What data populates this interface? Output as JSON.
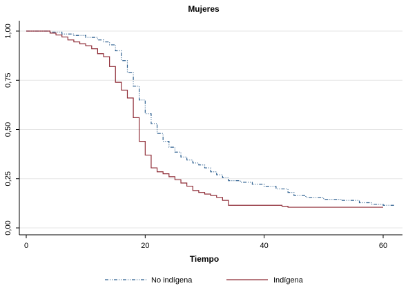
{
  "chart_data": {
    "type": "line",
    "step": true,
    "title": "Mujeres",
    "xlabel": "Tiempo",
    "ylabel": "",
    "xlim": [
      0,
      62
    ],
    "ylim": [
      0,
      1
    ],
    "x_ticks": [
      0,
      20,
      40,
      60
    ],
    "x_tick_labels": [
      "0",
      "20",
      "40",
      "60"
    ],
    "y_ticks": [
      0,
      0.25,
      0.5,
      0.75,
      1
    ],
    "y_tick_labels": [
      "0,00",
      "0,25",
      "0,50",
      "0,75",
      "1,00"
    ],
    "grid": true,
    "legend_position": "bottom",
    "series": [
      {
        "name": "No indígena",
        "color": "#2c5f8f",
        "dash": "dash-dot-dot",
        "points": [
          [
            0,
            1.0
          ],
          [
            4,
            0.995
          ],
          [
            6,
            0.985
          ],
          [
            8,
            0.978
          ],
          [
            10,
            0.968
          ],
          [
            12,
            0.955
          ],
          [
            13,
            0.945
          ],
          [
            14,
            0.93
          ],
          [
            15,
            0.9
          ],
          [
            16,
            0.85
          ],
          [
            17,
            0.79
          ],
          [
            18,
            0.72
          ],
          [
            19,
            0.65
          ],
          [
            20,
            0.58
          ],
          [
            21,
            0.53
          ],
          [
            22,
            0.48
          ],
          [
            23,
            0.44
          ],
          [
            24,
            0.41
          ],
          [
            25,
            0.385
          ],
          [
            26,
            0.36
          ],
          [
            27,
            0.345
          ],
          [
            28,
            0.33
          ],
          [
            29,
            0.32
          ],
          [
            30,
            0.305
          ],
          [
            31,
            0.285
          ],
          [
            32,
            0.27
          ],
          [
            33,
            0.255
          ],
          [
            34,
            0.24
          ],
          [
            36,
            0.232
          ],
          [
            38,
            0.222
          ],
          [
            40,
            0.21
          ],
          [
            42,
            0.198
          ],
          [
            44,
            0.18
          ],
          [
            45,
            0.165
          ],
          [
            47,
            0.155
          ],
          [
            50,
            0.145
          ],
          [
            53,
            0.14
          ],
          [
            56,
            0.128
          ],
          [
            58,
            0.12
          ],
          [
            60,
            0.115
          ],
          [
            62,
            0.115
          ]
        ]
      },
      {
        "name": "Indígena",
        "color": "#8e2a35",
        "dash": "solid",
        "points": [
          [
            0,
            1.0
          ],
          [
            4,
            0.99
          ],
          [
            5,
            0.98
          ],
          [
            6,
            0.97
          ],
          [
            7,
            0.955
          ],
          [
            8,
            0.945
          ],
          [
            9,
            0.935
          ],
          [
            10,
            0.925
          ],
          [
            11,
            0.91
          ],
          [
            12,
            0.885
          ],
          [
            13,
            0.87
          ],
          [
            14,
            0.82
          ],
          [
            15,
            0.74
          ],
          [
            16,
            0.7
          ],
          [
            17,
            0.66
          ],
          [
            18,
            0.56
          ],
          [
            19,
            0.44
          ],
          [
            20,
            0.37
          ],
          [
            21,
            0.305
          ],
          [
            22,
            0.285
          ],
          [
            23,
            0.275
          ],
          [
            24,
            0.26
          ],
          [
            25,
            0.245
          ],
          [
            26,
            0.228
          ],
          [
            27,
            0.212
          ],
          [
            28,
            0.19
          ],
          [
            29,
            0.18
          ],
          [
            30,
            0.172
          ],
          [
            31,
            0.165
          ],
          [
            32,
            0.155
          ],
          [
            33,
            0.14
          ],
          [
            34,
            0.115
          ],
          [
            36,
            0.115
          ],
          [
            40,
            0.115
          ],
          [
            43,
            0.11
          ],
          [
            44,
            0.105
          ],
          [
            60,
            0.105
          ]
        ]
      }
    ]
  }
}
